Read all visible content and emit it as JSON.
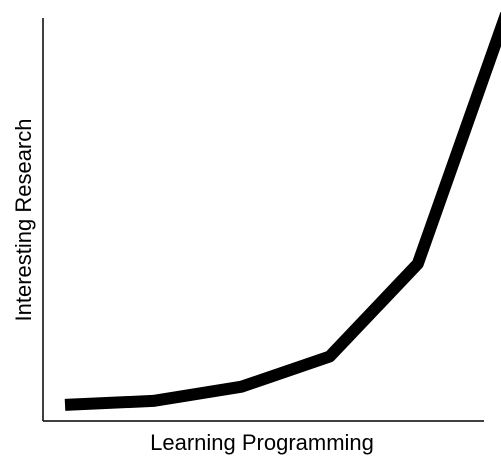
{
  "chart_data": {
    "type": "line",
    "title": "",
    "xlabel": "Learning Programming",
    "ylabel": "Interesting Research",
    "xlim": [
      0,
      10
    ],
    "ylim": [
      0,
      10
    ],
    "grid": false,
    "legend": "none",
    "show_ticks": false,
    "series": [
      {
        "x": [
          0.5,
          2.5,
          4.5,
          6.5,
          8.5,
          10.5
        ],
        "values": [
          0.4,
          0.5,
          0.85,
          1.6,
          3.9,
          10.1
        ],
        "color": "#000000"
      }
    ]
  }
}
